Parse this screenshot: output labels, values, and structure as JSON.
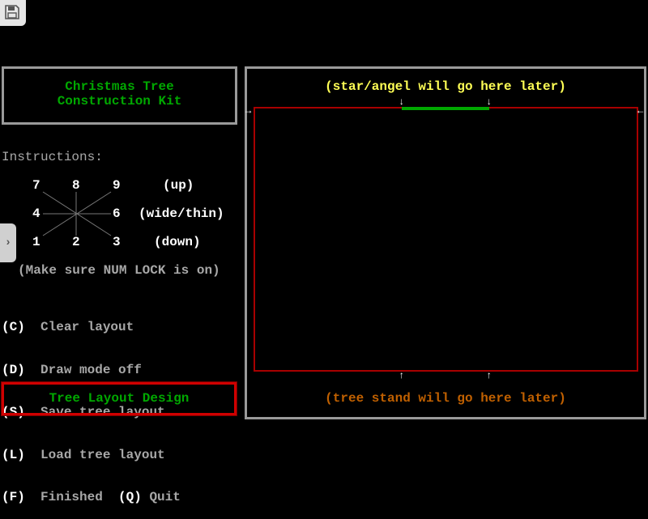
{
  "toolbar": {
    "save_icon": "floppy-disk-icon",
    "side_tab_icon": "chevron-right-icon",
    "side_tab_glyph": "›"
  },
  "title": {
    "line1": "Christmas Tree",
    "line2": "Construction Kit"
  },
  "instructions": {
    "heading": "Instructions:",
    "numpad": {
      "k7": "7",
      "k8": "8",
      "k9": "9",
      "k4": "4",
      "k6": "6",
      "k1": "1",
      "k2": "2",
      "k3": "3"
    },
    "up": "(up)",
    "wide_thin": "(wide/thin)",
    "down": "(down)",
    "numlock_note": "(Make sure NUM LOCK is on)"
  },
  "menu": [
    {
      "key": "(C)",
      "label": "Clear layout"
    },
    {
      "key": "(D)",
      "label": "Draw mode off"
    },
    {
      "key": "(S)",
      "label": "Save tree layout"
    },
    {
      "key": "(L)",
      "label": "Load tree layout"
    },
    {
      "key": "(F)",
      "label": "Finished",
      "key2": "(Q)",
      "label2": "Quit"
    }
  ],
  "mode_label": "Tree Layout Design",
  "canvas": {
    "top_note": "(star/angel will go here later)",
    "bottom_note": "(tree stand will go here later)"
  },
  "colors": {
    "title": "#00a800",
    "top_note": "#ffff55",
    "bottom_note": "#c06000",
    "area_border": "#a80000",
    "mode_border": "#d00000"
  }
}
